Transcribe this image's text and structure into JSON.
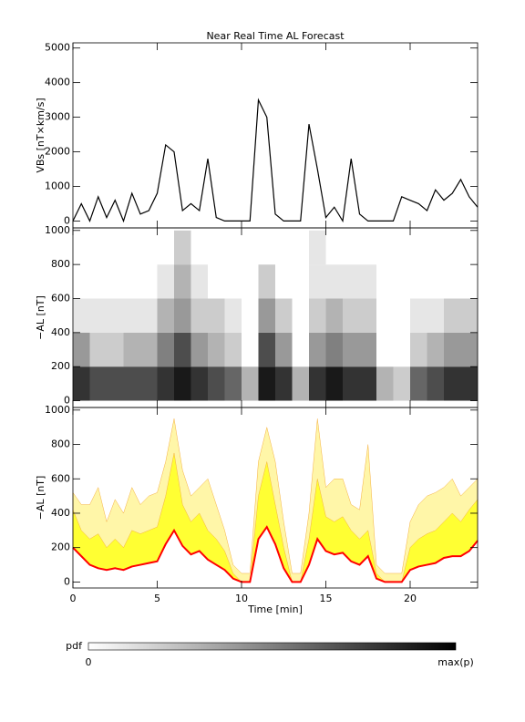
{
  "title": "Near Real Time AL Forecast",
  "chart_data": [
    {
      "type": "line",
      "ylabel": "VBs [nT×km/s]",
      "xlim": [
        0,
        24
      ],
      "xticks": [
        0,
        5,
        10,
        15,
        20
      ],
      "ylim": [
        -200,
        5150
      ],
      "yticks": [
        0,
        1000,
        2000,
        3000,
        4000,
        5000
      ],
      "x": [
        0,
        0.5,
        1,
        1.5,
        2,
        2.5,
        3,
        3.5,
        4,
        4.5,
        5,
        5.5,
        6,
        6.5,
        7,
        7.5,
        8,
        8.5,
        9,
        9.5,
        10,
        10.5,
        11,
        11.5,
        12,
        12.5,
        13,
        13.5,
        14,
        14.5,
        15,
        15.5,
        16,
        16.5,
        17,
        17.5,
        18,
        18.5,
        19,
        19.5,
        20,
        20.5,
        21,
        21.5,
        22,
        22.5,
        23,
        23.5,
        24
      ],
      "series": [
        {
          "color": "#000000",
          "values": [
            0,
            500,
            0,
            700,
            100,
            600,
            0,
            800,
            200,
            300,
            800,
            2200,
            2000,
            300,
            500,
            300,
            1800,
            100,
            0,
            0,
            0,
            0,
            3500,
            3000,
            200,
            0,
            0,
            0,
            2800,
            1500,
            100,
            400,
            0,
            1800,
            200,
            0,
            0,
            0,
            0,
            700,
            600,
            500,
            300,
            900,
            600,
            800,
            1200,
            700,
            400
          ]
        }
      ]
    },
    {
      "type": "heatmap",
      "ylabel": "−AL [nT]",
      "xlim": [
        0,
        24
      ],
      "xticks": [
        0,
        5,
        10,
        15,
        20
      ],
      "ylim": [
        -40,
        1015
      ],
      "yticks": [
        0,
        200,
        400,
        600,
        800,
        1000
      ],
      "xbins": [
        0,
        1,
        2,
        3,
        4,
        5,
        6,
        7,
        8,
        9,
        10,
        11,
        12,
        13,
        14,
        15,
        16,
        17,
        18,
        19,
        20,
        21,
        22,
        23,
        24
      ],
      "ybins": [
        0,
        200,
        400,
        600,
        800,
        1000
      ],
      "z": [
        [
          0.8,
          0.7,
          0.7,
          0.7,
          0.7,
          0.8,
          0.9,
          0.8,
          0.7,
          0.6,
          0.3,
          0.9,
          0.8,
          0.3,
          0.8,
          0.9,
          0.8,
          0.8,
          0.3,
          0.2,
          0.6,
          0.7,
          0.8,
          0.8
        ],
        [
          0.4,
          0.2,
          0.2,
          0.3,
          0.3,
          0.5,
          0.7,
          0.4,
          0.3,
          0.2,
          0,
          0.7,
          0.4,
          0,
          0.4,
          0.5,
          0.4,
          0.4,
          0,
          0,
          0.2,
          0.3,
          0.4,
          0.4
        ],
        [
          0.1,
          0.1,
          0.1,
          0.1,
          0.1,
          0.3,
          0.4,
          0.2,
          0.2,
          0.1,
          0,
          0.4,
          0.2,
          0,
          0.2,
          0.3,
          0.2,
          0.2,
          0,
          0,
          0.1,
          0.1,
          0.2,
          0.2
        ],
        [
          0,
          0,
          0,
          0,
          0,
          0.1,
          0.3,
          0.1,
          0,
          0,
          0,
          0.2,
          0,
          0,
          0.1,
          0.1,
          0.1,
          0.1,
          0,
          0,
          0,
          0,
          0,
          0
        ],
        [
          0,
          0,
          0,
          0,
          0,
          0,
          0.2,
          0,
          0,
          0,
          0,
          0,
          0,
          0,
          0.1,
          0,
          0,
          0,
          0,
          0,
          0,
          0,
          0,
          0
        ]
      ]
    },
    {
      "type": "line",
      "ylabel": "−AL [nT]",
      "xlabel": "Time [min]",
      "xticklabels": true,
      "xlim": [
        0,
        24
      ],
      "xticks": [
        0,
        5,
        10,
        15,
        20
      ],
      "ylim": [
        -35,
        1015
      ],
      "yticks": [
        0,
        200,
        400,
        600,
        800,
        1000
      ],
      "x": [
        0,
        0.5,
        1,
        1.5,
        2,
        2.5,
        3,
        3.5,
        4,
        4.5,
        5,
        5.5,
        6,
        6.5,
        7,
        7.5,
        8,
        8.5,
        9,
        9.5,
        10,
        10.5,
        11,
        11.5,
        12,
        12.5,
        13,
        13.5,
        14,
        14.5,
        15,
        15.5,
        16,
        16.5,
        17,
        17.5,
        18,
        18.5,
        19,
        19.5,
        20,
        20.5,
        21,
        21.5,
        22,
        22.5,
        23,
        23.5,
        24
      ],
      "fill_between": [
        [
          0,
          2
        ],
        [
          1,
          2
        ]
      ],
      "series": [
        {
          "color": "#fff6a8",
          "values": [
            520,
            450,
            450,
            550,
            350,
            480,
            400,
            550,
            450,
            500,
            520,
            700,
            950,
            650,
            500,
            550,
            600,
            450,
            300,
            100,
            50,
            50,
            700,
            900,
            700,
            350,
            50,
            50,
            400,
            950,
            550,
            600,
            600,
            450,
            420,
            800,
            100,
            50,
            50,
            50,
            350,
            450,
            500,
            520,
            550,
            600,
            500,
            550,
            600
          ]
        },
        {
          "color": "#ffff33",
          "values": [
            420,
            300,
            250,
            280,
            200,
            250,
            200,
            300,
            280,
            300,
            320,
            500,
            750,
            450,
            350,
            400,
            300,
            250,
            180,
            50,
            0,
            0,
            500,
            700,
            450,
            200,
            0,
            0,
            250,
            600,
            380,
            350,
            380,
            300,
            250,
            300,
            50,
            0,
            0,
            0,
            200,
            250,
            280,
            300,
            350,
            400,
            350,
            420,
            480
          ]
        },
        {
          "color": "#ff0000",
          "values": [
            200,
            150,
            100,
            80,
            70,
            80,
            70,
            90,
            100,
            110,
            120,
            220,
            300,
            210,
            160,
            180,
            130,
            100,
            70,
            20,
            0,
            0,
            250,
            320,
            220,
            80,
            0,
            0,
            100,
            250,
            180,
            160,
            170,
            120,
            100,
            150,
            20,
            0,
            0,
            0,
            70,
            90,
            100,
            110,
            140,
            150,
            150,
            180,
            240
          ]
        }
      ]
    }
  ],
  "colorbar": {
    "label": "pdf",
    "min_label": "0",
    "max_label": "max(p)"
  }
}
